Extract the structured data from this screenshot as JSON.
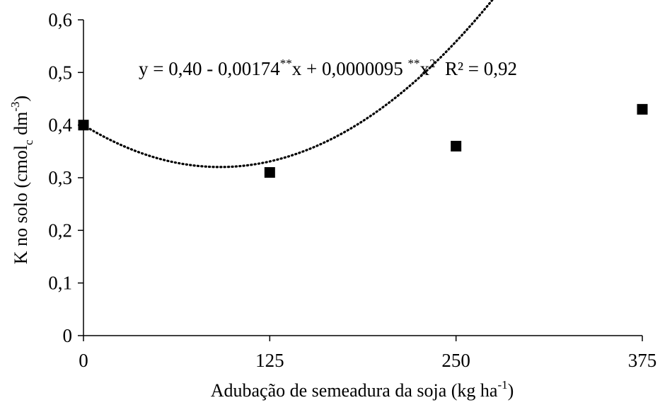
{
  "chart_data": {
    "type": "scatter",
    "x_ticks": [
      "0",
      "125",
      "250",
      "375"
    ],
    "y_ticks": [
      "0",
      "0,1",
      "0,2",
      "0,3",
      "0,4",
      "0,5",
      "0,6"
    ],
    "xlim": [
      0,
      375
    ],
    "ylim": [
      0,
      0.6
    ],
    "x_tick_values": [
      0,
      125,
      250,
      375
    ],
    "y_tick_values": [
      0,
      0.1,
      0.2,
      0.3,
      0.4,
      0.5,
      0.6
    ],
    "xlabel": {
      "main": "Adubação de semeadura da soja (kg ha",
      "sup": "-1",
      "end": ")"
    },
    "ylabel": {
      "main": "K no solo (cmol",
      "sub": "c",
      "mid": " dm",
      "sup": "-3",
      "end": ")"
    },
    "equation": {
      "part1": "y = 0,40 - 0,00174",
      "sup1": "**",
      "part2": "x + 0,0000095 ",
      "sup2": "**",
      "part3": "x",
      "sup3": "2",
      "part4": "  R² = 0,92"
    },
    "series": [
      {
        "x": [
          0,
          125,
          250,
          375
        ],
        "y": [
          0.4,
          0.31,
          0.36,
          0.43
        ],
        "marker": "square",
        "color": "#000000"
      }
    ],
    "trendline": {
      "type": "polynomial",
      "coefficients": [
        0.4,
        -0.00174,
        9.5e-06
      ],
      "style": "dotted",
      "color": "#000000"
    },
    "grid": false
  }
}
